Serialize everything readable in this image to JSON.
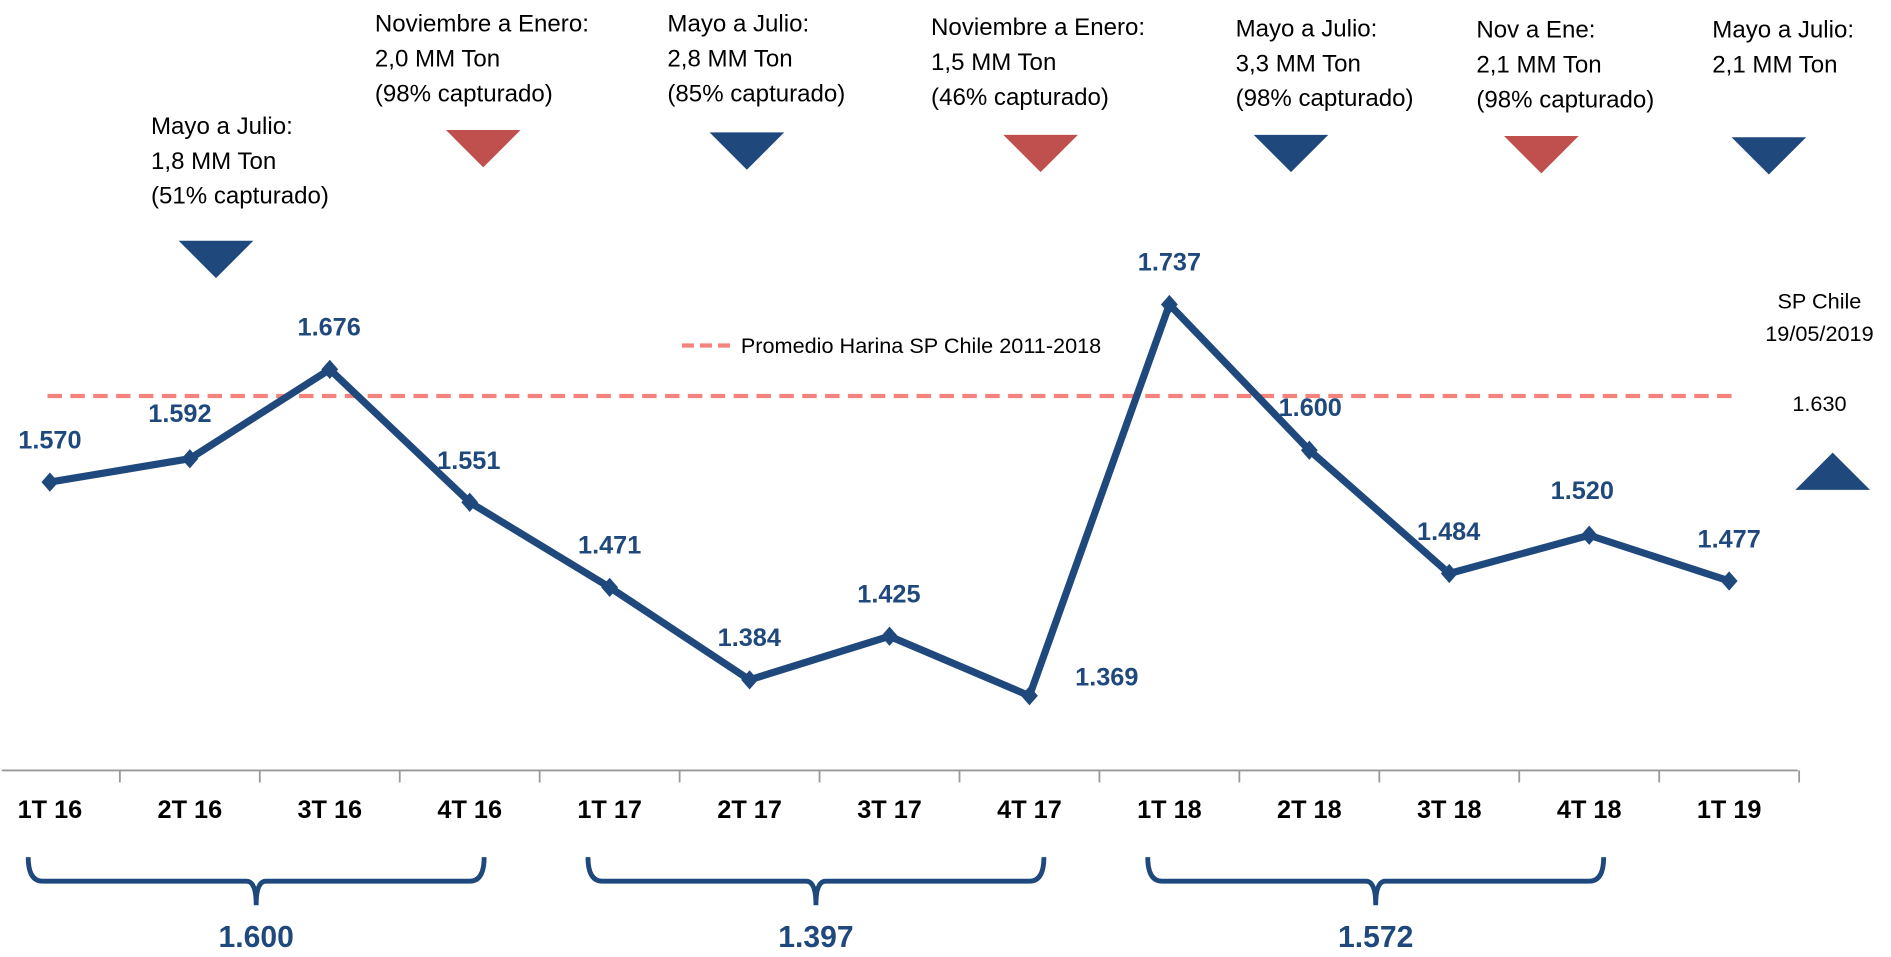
{
  "chart_data": {
    "type": "line",
    "categories": [
      "1T 16",
      "2T 16",
      "3T 16",
      "4T 16",
      "1T 17",
      "2T 17",
      "3T 17",
      "4T 17",
      "1T 18",
      "2T 18",
      "3T 18",
      "4T 18",
      "1T 19"
    ],
    "values": [
      1570,
      1592,
      1676,
      1551,
      1471,
      1384,
      1425,
      1369,
      1737,
      1600,
      1484,
      1520,
      1477
    ],
    "value_labels": [
      "1.570",
      "1.592",
      "1.676",
      "1.551",
      "1.471",
      "1.384",
      "1.425",
      "1.369",
      "1.737",
      "1.600",
      "1.484",
      "1.520",
      "1.477"
    ],
    "color": "#1f497d",
    "average": {
      "label": "Promedio Harina SP Chile 2011-2018",
      "value": 1651,
      "color": "#f4837d"
    },
    "annotations": [
      {
        "lines": [
          "Mayo a Julio:",
          "1,8 MM Ton",
          "(51% capturado)"
        ],
        "color": "#1f497d"
      },
      {
        "lines": [
          "Noviembre a Enero:",
          "2,0 MM Ton",
          "(98% capturado)"
        ],
        "color": "#c0504d"
      },
      {
        "lines": [
          "Mayo a Julio:",
          "2,8 MM Ton",
          "(85% capturado)"
        ],
        "color": "#1f497d"
      },
      {
        "lines": [
          "Noviembre a Enero:",
          "1,5 MM Ton",
          "(46% capturado)"
        ],
        "color": "#c0504d"
      },
      {
        "lines": [
          "Mayo a Julio:",
          "3,3 MM Ton",
          "(98% capturado)"
        ],
        "color": "#1f497d"
      },
      {
        "lines": [
          "Nov a Ene:",
          "2,1 MM Ton",
          "(98% capturado)"
        ],
        "color": "#c0504d"
      },
      {
        "lines": [
          "Mayo a Julio:",
          "2,1 MM Ton"
        ],
        "color": "#1f497d"
      }
    ],
    "groups": [
      {
        "value": 1600,
        "value_label": "1.600"
      },
      {
        "value": 1397,
        "value_label": "1.397"
      },
      {
        "value": 1572,
        "value_label": "1.572"
      }
    ],
    "spot": {
      "lines": [
        "SP Chile",
        "19/05/2019"
      ],
      "value": 1630,
      "value_label": "1.630",
      "color": "#1f497d"
    }
  }
}
